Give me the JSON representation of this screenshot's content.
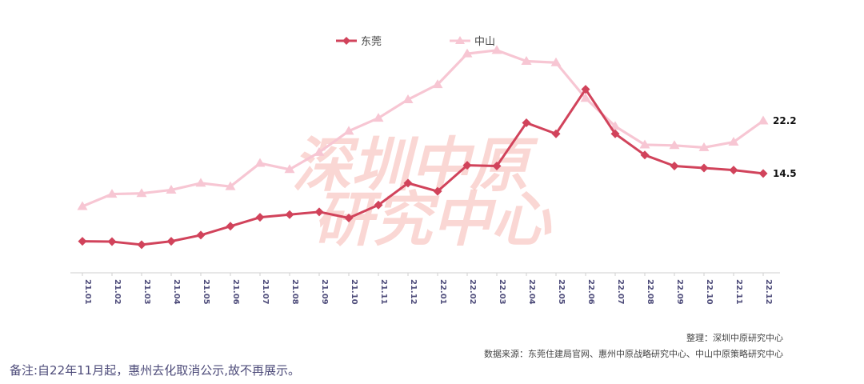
{
  "chart_data": {
    "type": "line",
    "categories": [
      "21.01",
      "21.02",
      "21.03",
      "21.04",
      "21.05",
      "21.06",
      "21.07",
      "21.08",
      "21.09",
      "21.10",
      "21.11",
      "21.12",
      "22.01",
      "22.02",
      "22.03",
      "22.04",
      "22.05",
      "22.06",
      "22.07",
      "22.08",
      "22.09",
      "22.10",
      "22.11",
      "22.12"
    ],
    "series": [
      {
        "name": "东莞",
        "color": "#d1435b",
        "marker": "diamond",
        "values": [
          4.6,
          4.55,
          4.1,
          4.6,
          5.5,
          6.8,
          8.1,
          8.5,
          8.9,
          8.0,
          9.9,
          13.1,
          11.9,
          15.7,
          15.6,
          21.9,
          20.3,
          26.8,
          20.3,
          17.2,
          15.6,
          15.3,
          15.0,
          14.5
        ]
      },
      {
        "name": "中山",
        "color": "#f7c6d3",
        "marker": "triangle",
        "values": [
          9.7,
          11.5,
          11.6,
          12.1,
          13.1,
          12.6,
          16.0,
          15.1,
          17.6,
          20.7,
          22.6,
          25.3,
          27.5,
          32.0,
          32.5,
          30.9,
          30.7,
          25.5,
          21.4,
          18.7,
          18.6,
          18.3,
          19.1,
          22.2
        ]
      }
    ],
    "end_labels": [
      "14.5",
      "22.2"
    ],
    "ylim": [
      0,
      34
    ]
  },
  "watermark": {
    "line1": "深圳中原",
    "line2": "研究中心"
  },
  "credits": {
    "org": "整理：深圳中原研究中心",
    "source": "数据来源：东莞住建局官网、惠州中原战略研究中心、中山中原策略研究中心"
  },
  "note": "备注:自22年11月起，惠州去化取消公示,故不再展示。"
}
